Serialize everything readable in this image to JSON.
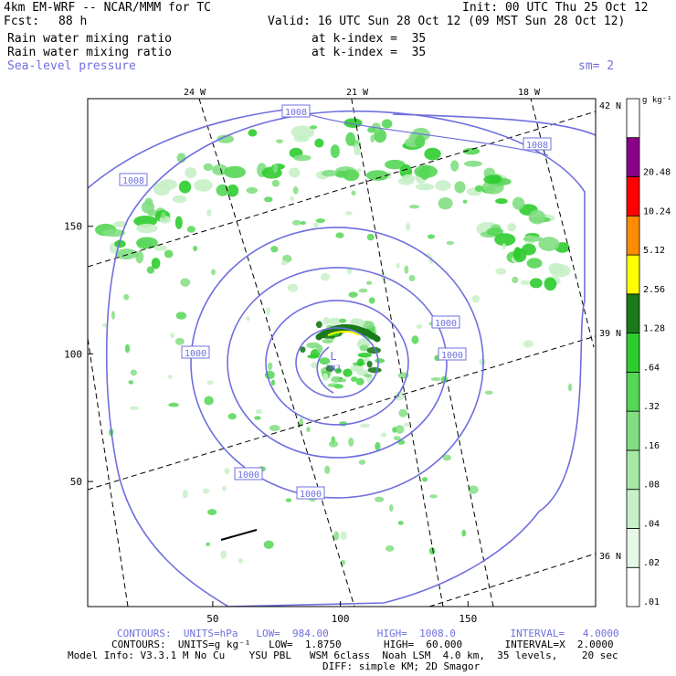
{
  "header": {
    "model": "4km EM-WRF -- NCAR/MMM for TC",
    "init": "Init: 00 UTC Thu 25 Oct 12",
    "fcst_label": "Fcst:",
    "fcst_value": "88 h",
    "valid": "Valid: 16 UTC Sun 28 Oct 12 (09 MST Sun 28 Oct 12)",
    "field1": "Rain water mixing ratio",
    "field1_level": "at k-index =  35",
    "field2": "Rain water mixing ratio",
    "field2_level": "at k-index =  35",
    "field3": "Sea-level pressure",
    "smooth": "sm= 2"
  },
  "colors": {
    "contour": "#6f6fdf",
    "frame": "#000000"
  },
  "footer": {
    "line1": "CONTOURS:  UNITS=hPa   LOW=  984.00        HIGH=  1008.0         INTERVAL=   4.0000",
    "line2": "CONTOURS:  UNITS=g kg⁻¹   LOW=  1.8750       HIGH=  60.000       INTERVAL=X  2.0000",
    "line3": "Model Info: V3.3.1 M No Cu    YSU PBL   WSM 6class  Noah LSM  4.0 km,  35 levels,    20 sec",
    "line4": "DIFF: simple KM; 2D Smagor"
  },
  "chart_data": {
    "type": "heatmap",
    "title": "Rain water mixing ratio / Sea-level pressure",
    "x_ticks": [
      50,
      100,
      150
    ],
    "y_ticks": [
      50,
      100,
      150
    ],
    "xlim": [
      1,
      200
    ],
    "ylim": [
      1,
      200
    ],
    "longitude_labels": [
      "24 W",
      "21 W",
      "18 W"
    ],
    "latitude_labels": [
      "42 N",
      "39 N",
      "36 N"
    ],
    "colorbar": {
      "units": "g kg⁻¹",
      "levels": [
        ".01",
        ".02",
        ".04",
        ".08",
        ".16",
        ".32",
        ".64",
        "1.28",
        "2.56",
        "5.12",
        "10.24",
        "20.48"
      ],
      "colors": [
        "#ffffff",
        "#e6f7e6",
        "#c8f0c8",
        "#a6e8a6",
        "#82de82",
        "#55d655",
        "#2ecc2e",
        "#1a7a1a",
        "#ffff00",
        "#ff8c00",
        "#ff0000",
        "#8b008b"
      ]
    },
    "pressure_contours": {
      "units": "hPa",
      "low": 984.0,
      "high": 1008.0,
      "interval": 4.0,
      "labels": [
        "1008",
        "1008",
        "1008",
        "1000",
        "1000",
        "1000",
        "1000",
        "1000"
      ]
    },
    "low_center": {
      "symbol": "L",
      "value": "983",
      "x": 98,
      "y": 98
    },
    "annotations": [
      "L",
      "983"
    ]
  }
}
